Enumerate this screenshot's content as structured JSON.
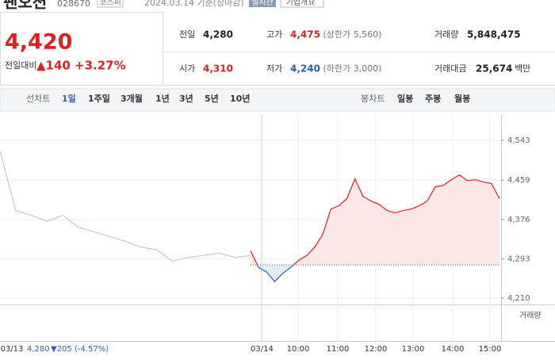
{
  "header": {
    "name": "팬오션",
    "code": "028670",
    "market": "코스피",
    "date": "2024.03.14 기준(장마감)",
    "realtime": "실시간",
    "company": "기업개요"
  },
  "summary": {
    "price": "4,420",
    "change_label": "전일대비",
    "change": "▲140",
    "change_rate": "+3.27%",
    "items": [
      {
        "label": "전일",
        "value": "4,280"
      },
      {
        "label": "고가",
        "value": "4,475",
        "note": "(상한가 5,560)"
      },
      {
        "label": "거래량",
        "value": "5,848,475"
      },
      {
        "label": "시가",
        "value": "4,310"
      },
      {
        "label": "저가",
        "value": "4,240",
        "note": "(하한가 3,000)"
      },
      {
        "label": "거래대금",
        "value": "25,674",
        "unit": "백만"
      }
    ]
  },
  "tabs": {
    "line_label": "선차트",
    "line": [
      "1일",
      "1주일",
      "3개월",
      "1년",
      "3년",
      "5년",
      "10년"
    ],
    "candle_label": "봉차트",
    "candle": [
      "일봉",
      "주봉",
      "월봉"
    ]
  },
  "chart_data": {
    "type": "line",
    "ylim": [
      4210,
      4543
    ],
    "yticks": [
      {
        "value": 4543,
        "label": "4,543"
      },
      {
        "value": 4459,
        "label": "4,459"
      },
      {
        "value": 4376,
        "label": "4,376"
      },
      {
        "value": 4293,
        "label": "4,293"
      },
      {
        "value": 4210,
        "label": "4,210"
      }
    ],
    "baseline": 4280,
    "volume_label": "거래량",
    "xticks": [
      "03/13",
      "03/14",
      "10:00",
      "11:00",
      "12:00",
      "13:00",
      "14:00",
      "15:00"
    ],
    "prev_annotation": {
      "price": "4,280",
      "change": "▼205 (-4.57%)"
    },
    "series": [
      {
        "color": "#c8c8c8",
        "values": [
          4521,
          4395,
          4385,
          4372,
          4385,
          4360,
          4350,
          4340,
          4330,
          4318,
          4312,
          4288,
          4296,
          4300,
          4305,
          4296,
          4300
        ]
      },
      {
        "color": "#e02020",
        "values": [
          4310,
          4275,
          4265,
          4245,
          4262,
          4275,
          4290,
          4300,
          4318,
          4345,
          4398,
          4405,
          4420,
          4462,
          4425,
          4415,
          4408,
          4395,
          4390,
          4395,
          4398,
          4405,
          4415,
          4445,
          4448,
          4460,
          4470,
          4458,
          4460,
          4455,
          4452,
          4420
        ]
      }
    ]
  }
}
